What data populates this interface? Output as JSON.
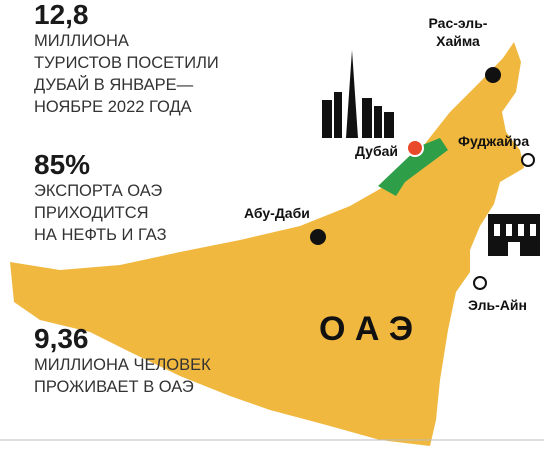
{
  "stats": [
    {
      "number": "12,8",
      "lines": [
        "МИЛЛИОНА",
        "ТУРИСТОВ ПОСЕТИЛИ",
        "ДУБАЙ В ЯНВАРЕ—",
        "НОЯБРЕ 2022 ГОДА"
      ]
    },
    {
      "number": "85%",
      "lines": [
        "ЭКСПОРТА ОАЭ",
        "ПРИХОДИТСЯ",
        "НА НЕФТЬ И ГАЗ"
      ]
    },
    {
      "number": "9,36",
      "lines": [
        "МИЛЛИОНА ЧЕЛОВЕК",
        "ПРОЖИВАЕТ В ОАЭ"
      ]
    }
  ],
  "map": {
    "country": "О А Э",
    "cities": {
      "ras_al_khaimah": [
        "Рас-эль-",
        "Хайма"
      ],
      "dubai": "Дубай",
      "fujairah": "Фуджайра",
      "abu_dhabi": "Абу-Даби",
      "al_ain": "Эль-Айн"
    }
  }
}
